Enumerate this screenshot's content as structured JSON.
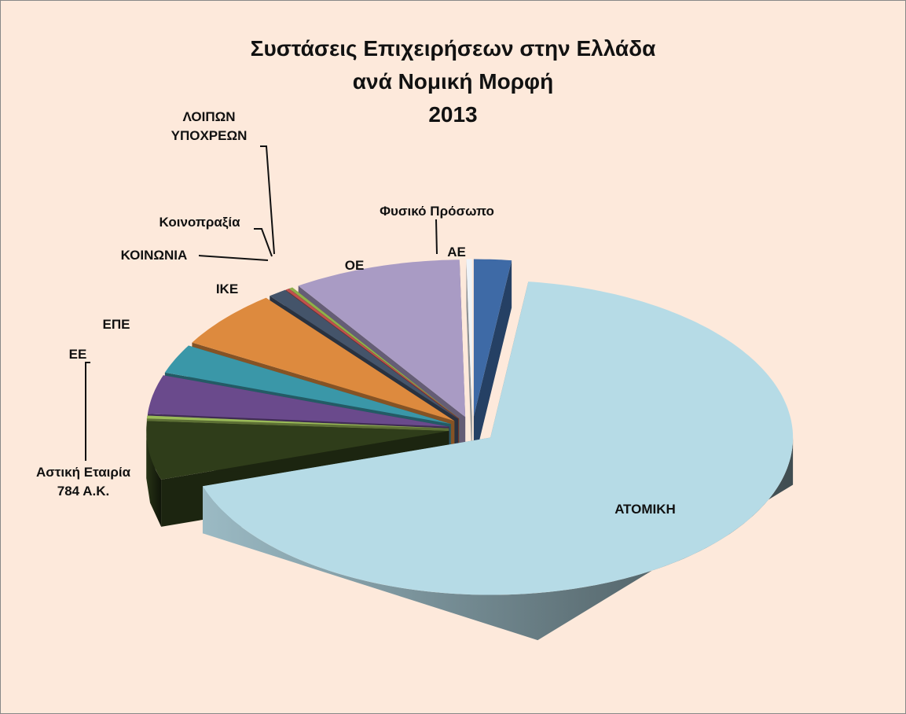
{
  "chart_data": {
    "type": "pie3d",
    "title": "Συστάσεις Επιχειρήσεων στην Ελλάδα\nανά Νομική Μορφή\n2013",
    "categories": [
      "ΑΕ",
      "ΑΤΟΜΙΚΗ",
      null,
      "Αστική Εταιρία\n784 Α.Κ.",
      "ΕΕ",
      "ΕΠΕ",
      "ΙΚΕ",
      "ΚΟΙΝΩΝΙΑ",
      "Κοινοπραξία",
      "ΛΟΙΠΩΝ\nΥΠΟΧΡΕΩΝ",
      "ΟΕ",
      "Φυσικό Πρόσωπο"
    ],
    "values": [
      2,
      68,
      6,
      0.3,
      4,
      3,
      6,
      1,
      0.2,
      0.2,
      9,
      0.3
    ],
    "colors": [
      "#3e6aa6",
      "#b6dbe6",
      "#2f3d1a",
      "#9bbb59",
      "#6a4a8c",
      "#3a97a8",
      "#dd8a3e",
      "#44546a",
      "#c0504d",
      "#8fb04a",
      "#a99bc4",
      "#eef3f8"
    ]
  }
}
